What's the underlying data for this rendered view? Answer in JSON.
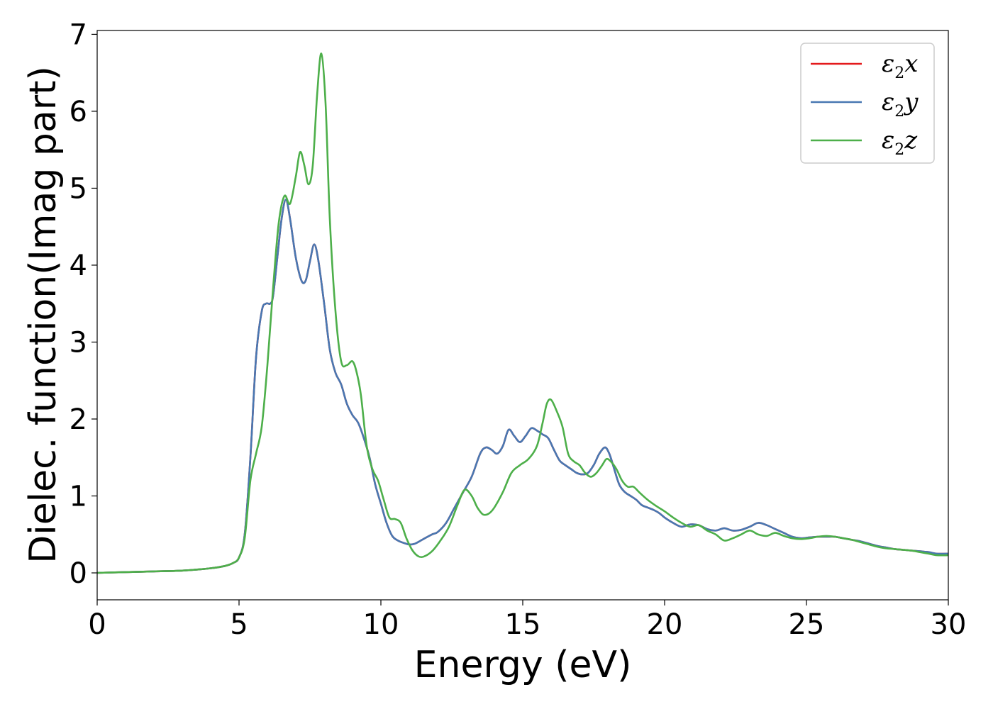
{
  "chart_data": {
    "type": "line",
    "title": "",
    "xlabel": "Energy (eV)",
    "ylabel": "Dielec. function(Imag part)",
    "xlim": [
      0,
      30
    ],
    "ylim": [
      -0.35,
      7.05
    ],
    "xticks": [
      "0",
      "5",
      "10",
      "15",
      "20",
      "25",
      "30"
    ],
    "yticks": [
      "0",
      "1",
      "2",
      "3",
      "4",
      "5",
      "6",
      "7"
    ],
    "grid": false,
    "legend_position": "top-right",
    "series": [
      {
        "name": "ε2x",
        "symbol": "ε",
        "sub": "2",
        "suffix": "x",
        "color": "#e41a1c",
        "x": [
          0,
          1,
          2,
          3,
          4,
          4.5,
          4.8,
          5.0,
          5.2,
          5.4,
          5.6,
          5.8,
          5.95,
          6.1,
          6.2,
          6.35,
          6.5,
          6.65,
          6.8,
          7.0,
          7.2,
          7.35,
          7.5,
          7.65,
          7.8,
          8.0,
          8.2,
          8.4,
          8.6,
          8.8,
          9.0,
          9.2,
          9.4,
          9.6,
          9.8,
          10.0,
          10.2,
          10.4,
          10.6,
          10.8,
          11.0,
          11.2,
          11.5,
          11.8,
          12.0,
          12.3,
          12.6,
          12.9,
          13.2,
          13.5,
          13.7,
          13.9,
          14.1,
          14.3,
          14.5,
          14.7,
          14.9,
          15.1,
          15.3,
          15.5,
          15.7,
          15.9,
          16.1,
          16.3,
          16.5,
          16.7,
          16.9,
          17.1,
          17.3,
          17.5,
          17.7,
          17.9,
          18.05,
          18.2,
          18.4,
          18.6,
          18.8,
          19.0,
          19.2,
          19.4,
          19.6,
          19.8,
          20.0,
          20.3,
          20.6,
          20.9,
          21.2,
          21.5,
          21.8,
          22.1,
          22.4,
          22.7,
          23.0,
          23.3,
          23.6,
          23.9,
          24.2,
          24.5,
          24.8,
          25.1,
          25.4,
          25.7,
          26.0,
          26.3,
          26.6,
          26.9,
          27.2,
          27.5,
          27.8,
          28.1,
          28.4,
          28.7,
          29.0,
          29.3,
          29.6,
          30.0
        ],
        "y": [
          0,
          0.01,
          0.02,
          0.03,
          0.06,
          0.09,
          0.13,
          0.2,
          0.5,
          1.5,
          2.8,
          3.4,
          3.5,
          3.5,
          3.6,
          4.1,
          4.6,
          4.85,
          4.6,
          4.1,
          3.8,
          3.8,
          4.05,
          4.27,
          4.05,
          3.5,
          2.9,
          2.6,
          2.45,
          2.2,
          2.05,
          1.95,
          1.75,
          1.5,
          1.15,
          0.9,
          0.65,
          0.48,
          0.42,
          0.39,
          0.37,
          0.38,
          0.44,
          0.5,
          0.53,
          0.65,
          0.85,
          1.05,
          1.25,
          1.55,
          1.63,
          1.6,
          1.55,
          1.65,
          1.86,
          1.78,
          1.7,
          1.78,
          1.88,
          1.85,
          1.8,
          1.75,
          1.6,
          1.46,
          1.4,
          1.35,
          1.3,
          1.28,
          1.3,
          1.4,
          1.55,
          1.63,
          1.55,
          1.38,
          1.15,
          1.05,
          1.0,
          0.95,
          0.88,
          0.85,
          0.82,
          0.78,
          0.72,
          0.65,
          0.6,
          0.63,
          0.62,
          0.57,
          0.55,
          0.58,
          0.55,
          0.56,
          0.6,
          0.65,
          0.62,
          0.57,
          0.52,
          0.47,
          0.45,
          0.46,
          0.47,
          0.47,
          0.47,
          0.45,
          0.43,
          0.41,
          0.38,
          0.35,
          0.33,
          0.31,
          0.3,
          0.29,
          0.28,
          0.27,
          0.25,
          0.25
        ]
      },
      {
        "name": "ε2y",
        "symbol": "ε",
        "sub": "2",
        "suffix": "y",
        "color": "#4878b2",
        "x": [
          0,
          1,
          2,
          3,
          4,
          4.5,
          4.8,
          5.0,
          5.2,
          5.4,
          5.6,
          5.8,
          5.95,
          6.1,
          6.2,
          6.35,
          6.5,
          6.65,
          6.8,
          7.0,
          7.2,
          7.35,
          7.5,
          7.65,
          7.8,
          8.0,
          8.2,
          8.4,
          8.6,
          8.8,
          9.0,
          9.2,
          9.4,
          9.6,
          9.8,
          10.0,
          10.2,
          10.4,
          10.6,
          10.8,
          11.0,
          11.2,
          11.5,
          11.8,
          12.0,
          12.3,
          12.6,
          12.9,
          13.2,
          13.5,
          13.7,
          13.9,
          14.1,
          14.3,
          14.5,
          14.7,
          14.9,
          15.1,
          15.3,
          15.5,
          15.7,
          15.9,
          16.1,
          16.3,
          16.5,
          16.7,
          16.9,
          17.1,
          17.3,
          17.5,
          17.7,
          17.9,
          18.05,
          18.2,
          18.4,
          18.6,
          18.8,
          19.0,
          19.2,
          19.4,
          19.6,
          19.8,
          20.0,
          20.3,
          20.6,
          20.9,
          21.2,
          21.5,
          21.8,
          22.1,
          22.4,
          22.7,
          23.0,
          23.3,
          23.6,
          23.9,
          24.2,
          24.5,
          24.8,
          25.1,
          25.4,
          25.7,
          26.0,
          26.3,
          26.6,
          26.9,
          27.2,
          27.5,
          27.8,
          28.1,
          28.4,
          28.7,
          29.0,
          29.3,
          29.6,
          30.0
        ],
        "y": [
          0,
          0.01,
          0.02,
          0.03,
          0.06,
          0.09,
          0.13,
          0.2,
          0.5,
          1.5,
          2.8,
          3.4,
          3.5,
          3.5,
          3.6,
          4.1,
          4.6,
          4.85,
          4.6,
          4.1,
          3.8,
          3.8,
          4.05,
          4.27,
          4.05,
          3.5,
          2.9,
          2.6,
          2.45,
          2.2,
          2.05,
          1.95,
          1.75,
          1.5,
          1.15,
          0.9,
          0.65,
          0.48,
          0.42,
          0.39,
          0.37,
          0.38,
          0.44,
          0.5,
          0.53,
          0.65,
          0.85,
          1.05,
          1.25,
          1.55,
          1.63,
          1.6,
          1.55,
          1.65,
          1.86,
          1.78,
          1.7,
          1.78,
          1.88,
          1.85,
          1.8,
          1.75,
          1.6,
          1.46,
          1.4,
          1.35,
          1.3,
          1.28,
          1.3,
          1.4,
          1.55,
          1.63,
          1.55,
          1.38,
          1.15,
          1.05,
          1.0,
          0.95,
          0.88,
          0.85,
          0.82,
          0.78,
          0.72,
          0.65,
          0.6,
          0.63,
          0.62,
          0.57,
          0.55,
          0.58,
          0.55,
          0.56,
          0.6,
          0.65,
          0.62,
          0.57,
          0.52,
          0.47,
          0.45,
          0.46,
          0.47,
          0.47,
          0.47,
          0.45,
          0.43,
          0.41,
          0.38,
          0.35,
          0.33,
          0.31,
          0.3,
          0.29,
          0.28,
          0.27,
          0.25,
          0.25
        ]
      },
      {
        "name": "ε2z",
        "symbol": "ε",
        "sub": "2",
        "suffix": "z",
        "color": "#4daf4a",
        "x": [
          0,
          1,
          2,
          3,
          4,
          4.5,
          4.8,
          5.0,
          5.2,
          5.4,
          5.6,
          5.8,
          6.0,
          6.2,
          6.4,
          6.6,
          6.8,
          7.0,
          7.15,
          7.3,
          7.45,
          7.6,
          7.75,
          7.9,
          8.05,
          8.2,
          8.4,
          8.6,
          8.8,
          9.0,
          9.15,
          9.3,
          9.5,
          9.7,
          9.9,
          10.1,
          10.3,
          10.5,
          10.7,
          10.9,
          11.1,
          11.3,
          11.5,
          11.8,
          12.1,
          12.4,
          12.7,
          12.95,
          13.2,
          13.4,
          13.6,
          13.8,
          14.0,
          14.3,
          14.6,
          14.9,
          15.2,
          15.5,
          15.7,
          15.85,
          16.0,
          16.2,
          16.4,
          16.6,
          16.8,
          17.0,
          17.2,
          17.4,
          17.6,
          17.8,
          17.95,
          18.1,
          18.3,
          18.5,
          18.7,
          18.9,
          19.1,
          19.4,
          19.7,
          20.0,
          20.3,
          20.6,
          20.9,
          21.2,
          21.5,
          21.8,
          22.1,
          22.4,
          22.7,
          23.0,
          23.3,
          23.6,
          23.9,
          24.2,
          24.5,
          24.8,
          25.1,
          25.4,
          25.7,
          26.0,
          26.3,
          26.6,
          26.9,
          27.2,
          27.5,
          27.8,
          28.1,
          28.4,
          28.7,
          29.0,
          29.3,
          29.6,
          30.0
        ],
        "y": [
          0,
          0.01,
          0.02,
          0.03,
          0.06,
          0.09,
          0.13,
          0.2,
          0.45,
          1.2,
          1.55,
          1.9,
          2.7,
          3.7,
          4.55,
          4.9,
          4.8,
          5.15,
          5.47,
          5.3,
          5.05,
          5.3,
          6.2,
          6.75,
          6.1,
          4.6,
          3.4,
          2.75,
          2.7,
          2.75,
          2.6,
          2.3,
          1.65,
          1.35,
          1.2,
          0.95,
          0.72,
          0.7,
          0.65,
          0.45,
          0.3,
          0.22,
          0.21,
          0.28,
          0.42,
          0.6,
          0.88,
          1.08,
          1.0,
          0.85,
          0.76,
          0.77,
          0.85,
          1.05,
          1.3,
          1.4,
          1.48,
          1.65,
          1.95,
          2.2,
          2.25,
          2.1,
          1.9,
          1.55,
          1.45,
          1.4,
          1.3,
          1.25,
          1.3,
          1.4,
          1.48,
          1.45,
          1.35,
          1.2,
          1.12,
          1.12,
          1.05,
          0.95,
          0.87,
          0.8,
          0.72,
          0.65,
          0.6,
          0.62,
          0.55,
          0.5,
          0.42,
          0.45,
          0.5,
          0.55,
          0.5,
          0.48,
          0.52,
          0.48,
          0.45,
          0.44,
          0.45,
          0.47,
          0.48,
          0.47,
          0.45,
          0.43,
          0.4,
          0.37,
          0.34,
          0.32,
          0.31,
          0.3,
          0.29,
          0.27,
          0.25,
          0.23,
          0.23
        ]
      }
    ]
  }
}
